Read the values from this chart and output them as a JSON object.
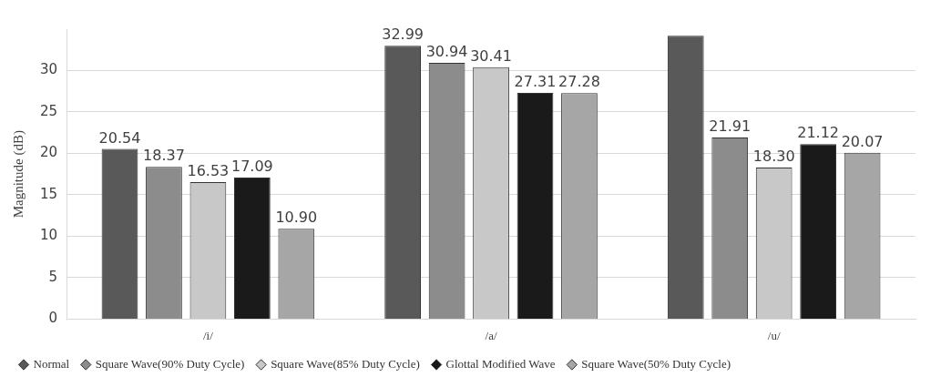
{
  "chart_data": {
    "type": "bar",
    "ylabel": "Magnitude (dB)",
    "categories": [
      "/i/",
      "/a/",
      "/u/"
    ],
    "series": [
      {
        "name": "Normal",
        "color": "#595959",
        "values": [
          20.54,
          32.99,
          34.2
        ],
        "value_labels": [
          "20.54",
          "32.99",
          null
        ]
      },
      {
        "name": "Square Wave(90% Duty Cycle)",
        "color": "#8c8c8c",
        "values": [
          18.37,
          30.94,
          21.91
        ],
        "value_labels": [
          "18.37",
          "30.94",
          "21.91"
        ]
      },
      {
        "name": "Square Wave(85% Duty Cycle)",
        "color": "#c8c8c8",
        "values": [
          16.53,
          30.41,
          18.3
        ],
        "value_labels": [
          "16.53",
          "30.41",
          "18.30"
        ]
      },
      {
        "name": "Glottal Modified Wave",
        "color": "#1a1a1a",
        "values": [
          17.09,
          27.31,
          21.12
        ],
        "value_labels": [
          "17.09",
          "27.31",
          "21.12"
        ]
      },
      {
        "name": "Square Wave(50% Duty Cycle)",
        "color": "#a6a6a6",
        "values": [
          10.9,
          27.28,
          20.07
        ],
        "value_labels": [
          "10.90",
          "27.28",
          "20.07"
        ]
      }
    ],
    "ylim": [
      0,
      35
    ],
    "yticks": [
      0,
      5,
      10,
      15,
      20,
      25,
      30
    ],
    "grid": "y",
    "legend": "bottom"
  }
}
